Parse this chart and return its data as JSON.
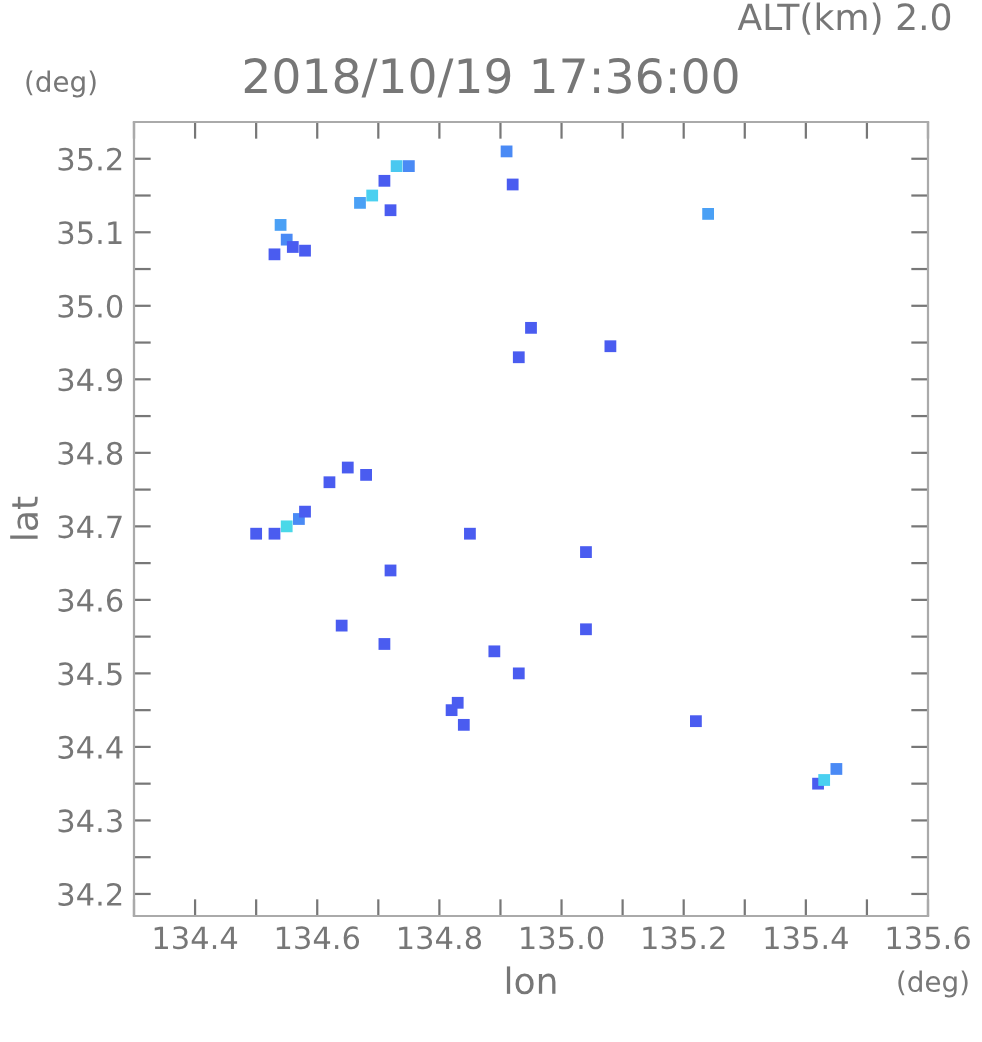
{
  "chart_data": {
    "type": "scatter",
    "title": "2018/10/19 17:36:00",
    "subtitle": "ALT(km) 2.0",
    "xlabel": "lon",
    "ylabel": "lat",
    "annotations": [
      "(deg)",
      "(deg)"
    ],
    "marker": "square",
    "grid": false,
    "legend": false,
    "xlim": [
      134.3,
      135.6
    ],
    "ylim": [
      34.17,
      35.25
    ],
    "xticks": [
      {
        "value": 134.3,
        "label": null
      },
      134.4,
      {
        "value": 134.5,
        "label": null
      },
      134.6,
      {
        "value": 134.7,
        "label": null
      },
      134.8,
      {
        "value": 134.9,
        "label": null
      },
      {
        "value": 135.0,
        "label": "135.0"
      },
      {
        "value": 135.1,
        "label": null
      },
      135.2,
      {
        "value": 135.3,
        "label": null
      },
      135.4,
      {
        "value": 135.5,
        "label": null
      },
      135.6
    ],
    "yticks": [
      34.2,
      {
        "value": 34.25,
        "label": null
      },
      34.3,
      {
        "value": 34.35,
        "label": null
      },
      34.4,
      {
        "value": 34.45,
        "label": null
      },
      34.5,
      {
        "value": 34.55,
        "label": null
      },
      34.6,
      {
        "value": 34.65,
        "label": null
      },
      34.7,
      {
        "value": 34.75,
        "label": null
      },
      34.8,
      {
        "value": 34.85,
        "label": null
      },
      34.9,
      {
        "value": 34.95,
        "label": null
      },
      {
        "value": 35.0,
        "label": "35.0"
      },
      {
        "value": 35.05,
        "label": null
      },
      35.1,
      {
        "value": 35.15,
        "label": null
      },
      35.2
    ],
    "x": [
      134.53,
      134.55,
      134.56,
      134.54,
      134.58,
      134.67,
      134.69,
      134.71,
      134.73,
      134.75,
      134.72,
      134.91,
      134.92,
      135.24,
      134.95,
      134.93,
      135.08,
      134.65,
      134.68,
      134.62,
      134.55,
      134.53,
      134.57,
      134.58,
      134.5,
      134.85,
      134.72,
      135.04,
      135.04,
      134.64,
      134.71,
      134.89,
      134.83,
      134.82,
      134.84,
      135.22,
      135.42,
      135.43,
      135.45,
      134.93
    ],
    "values": [
      35.07,
      35.09,
      35.08,
      35.11,
      35.075,
      35.14,
      35.15,
      35.17,
      35.19,
      35.19,
      35.13,
      35.21,
      35.165,
      35.125,
      34.97,
      34.93,
      34.945,
      34.78,
      34.77,
      34.76,
      34.7,
      34.69,
      34.71,
      34.72,
      34.69,
      34.69,
      34.64,
      34.665,
      34.56,
      34.565,
      34.54,
      34.53,
      34.46,
      34.45,
      34.43,
      34.435,
      34.35,
      34.355,
      34.37,
      34.5
    ],
    "colors": [
      "#4a5cf0",
      "#4a8af5",
      "#4a5cf0",
      "#4aa0f5",
      "#4a5cf0",
      "#4aa0f5",
      "#4ad0f0",
      "#4a5cf0",
      "#4ac8f0",
      "#4a8af5",
      "#4a5cf0",
      "#4a8af5",
      "#4a5cf0",
      "#4aa0f5",
      "#4a5cf0",
      "#4a5cf0",
      "#4a5cf0",
      "#4a5cf0",
      "#4a5cf0",
      "#4a5cf0",
      "#4ad8e8",
      "#4a5cf0",
      "#4a8af5",
      "#4a5cf0",
      "#4a5cf0",
      "#4a5cf0",
      "#4a5cf0",
      "#4a5cf0",
      "#4a5cf0",
      "#4a5cf0",
      "#4a5cf0",
      "#4a5cf0",
      "#4a5cf0",
      "#4a5cf0",
      "#4a5cf0",
      "#4a5cf0",
      "#4a5cf0",
      "#4ad0f0",
      "#4a8af5",
      "#4a5cf0"
    ]
  }
}
